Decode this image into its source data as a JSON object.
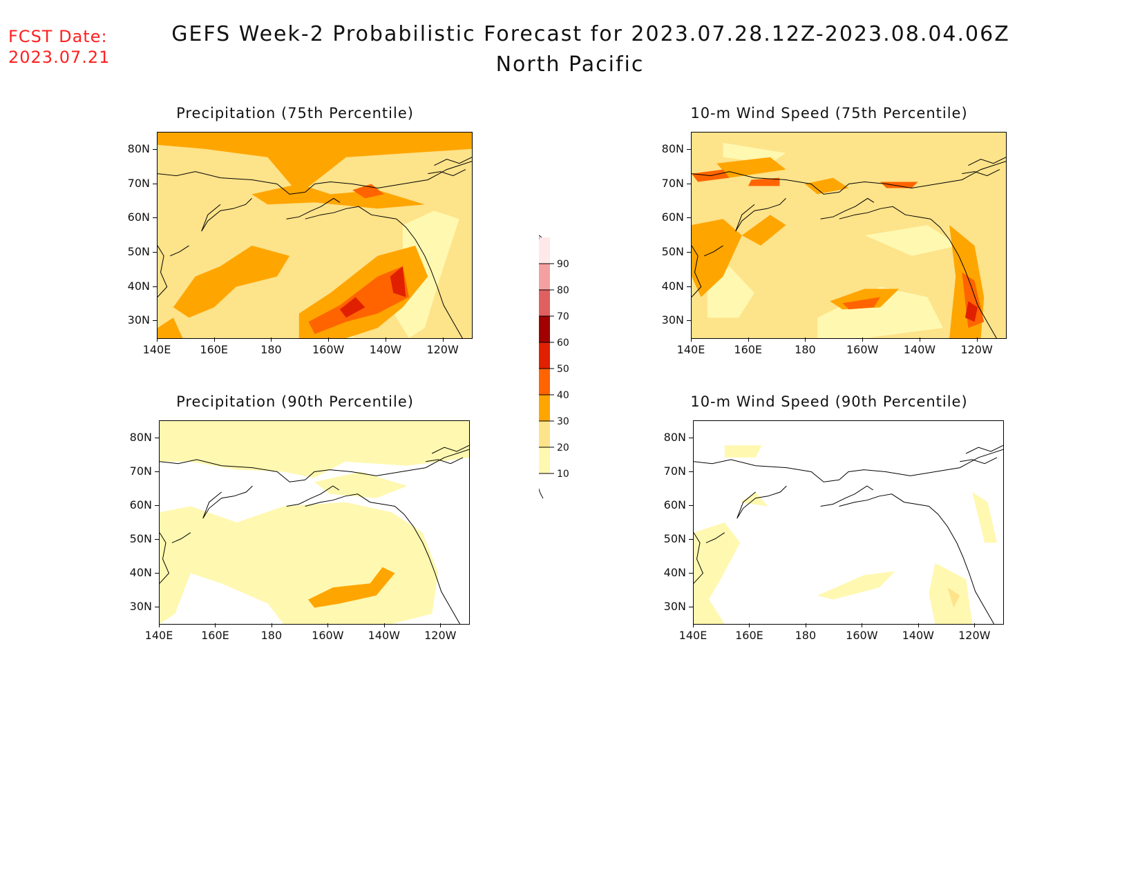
{
  "header": {
    "fcst_label": "FCST Date:",
    "fcst_date": "2023.07.21",
    "title": "GEFS Week-2 Probabilistic Forecast for 2023.07.28.12Z-2023.08.04.06Z",
    "subtitle": "North Pacific"
  },
  "axes": {
    "lat_labels": [
      "80N",
      "70N",
      "60N",
      "50N",
      "40N",
      "30N"
    ],
    "lon_labels": [
      "140E",
      "160E",
      "180",
      "160W",
      "140W",
      "120W"
    ]
  },
  "panels": [
    {
      "id": "precip75",
      "title": "Precipitation (75th Percentile)",
      "field": "precip",
      "level": 75
    },
    {
      "id": "wind75",
      "title": "10-m Wind Speed (75th Percentile)",
      "field": "wind",
      "level": 75
    },
    {
      "id": "precip90",
      "title": "Precipitation (90th Percentile)",
      "field": "precip",
      "level": 90
    },
    {
      "id": "wind90",
      "title": "10-m Wind Speed (90th Percentile)",
      "field": "wind",
      "level": 90
    }
  ],
  "colorbar": {
    "labels": [
      "10",
      "20",
      "30",
      "40",
      "50",
      "60",
      "70",
      "80",
      "90"
    ],
    "colors": [
      "#fff8b0",
      "#fde38a",
      "#ffa500",
      "#ff6400",
      "#e02000",
      "#a00000",
      "#e06060",
      "#f5a0a0",
      "#ffe8ea"
    ]
  }
}
